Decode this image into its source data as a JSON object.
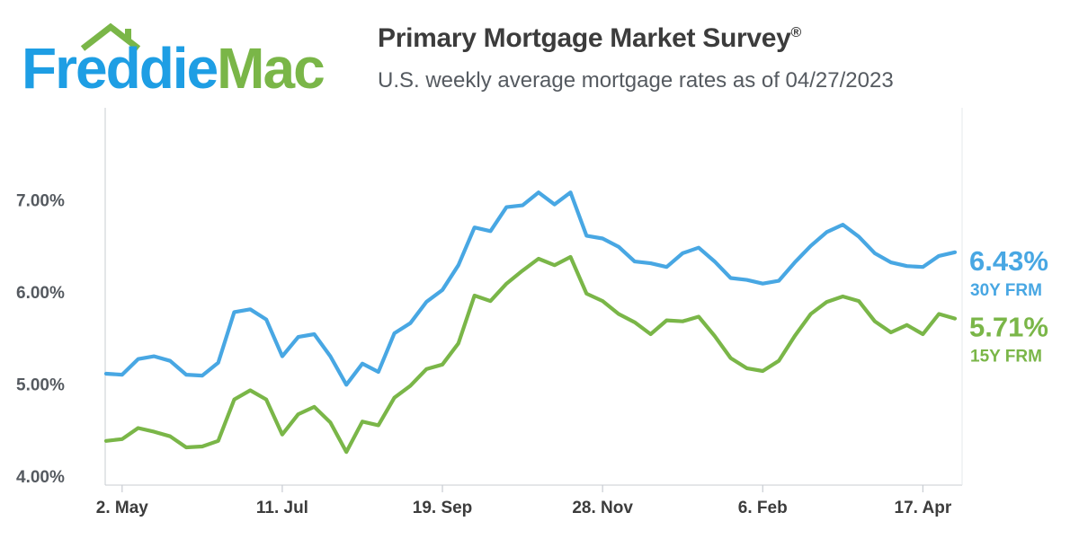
{
  "logo": {
    "text_left": "Freddie",
    "text_right": "Mac",
    "color_left": "#1e9ee4",
    "color_right": "#7ab648"
  },
  "header": {
    "title": "Primary Mortgage Market Survey",
    "title_mark": "®",
    "subtitle": "U.S. weekly average mortgage rates as of 04/27/2023"
  },
  "chart_data": {
    "type": "line",
    "x_tick_labels": [
      "2. May",
      "11. Jul",
      "19. Sep",
      "28. Nov",
      "6. Feb",
      "17. Apr"
    ],
    "x_tick_index": [
      1,
      11,
      21,
      31,
      41,
      51
    ],
    "y_tick_labels": [
      "4.00%",
      "5.00%",
      "6.00%",
      "7.00%"
    ],
    "y_ticks": [
      4,
      5,
      6,
      7
    ],
    "ylim": [
      3.9,
      8.0
    ],
    "grid": true,
    "series": [
      {
        "name": "30Y FRM",
        "end_value_label": "6.43%",
        "color": "#48a7e3",
        "values": [
          5.11,
          5.1,
          5.27,
          5.3,
          5.25,
          5.1,
          5.09,
          5.23,
          5.78,
          5.81,
          5.7,
          5.3,
          5.51,
          5.54,
          5.3,
          4.99,
          5.22,
          5.13,
          5.55,
          5.66,
          5.89,
          6.02,
          6.29,
          6.7,
          6.66,
          6.92,
          6.94,
          7.08,
          6.95,
          7.08,
          6.61,
          6.58,
          6.49,
          6.33,
          6.31,
          6.27,
          6.42,
          6.48,
          6.33,
          6.15,
          6.13,
          6.09,
          6.12,
          6.32,
          6.5,
          6.65,
          6.73,
          6.6,
          6.42,
          6.32,
          6.28,
          6.27,
          6.39,
          6.43
        ]
      },
      {
        "name": "15Y FRM",
        "end_value_label": "5.71%",
        "color": "#7ab648",
        "values": [
          4.38,
          4.4,
          4.52,
          4.48,
          4.43,
          4.31,
          4.32,
          4.38,
          4.83,
          4.93,
          4.83,
          4.45,
          4.67,
          4.75,
          4.58,
          4.26,
          4.59,
          4.55,
          4.85,
          4.98,
          5.16,
          5.21,
          5.44,
          5.96,
          5.9,
          6.09,
          6.23,
          6.36,
          6.29,
          6.38,
          5.98,
          5.9,
          5.76,
          5.67,
          5.54,
          5.69,
          5.68,
          5.73,
          5.52,
          5.28,
          5.17,
          5.14,
          5.25,
          5.52,
          5.76,
          5.89,
          5.95,
          5.9,
          5.68,
          5.56,
          5.64,
          5.54,
          5.76,
          5.71
        ]
      }
    ]
  }
}
